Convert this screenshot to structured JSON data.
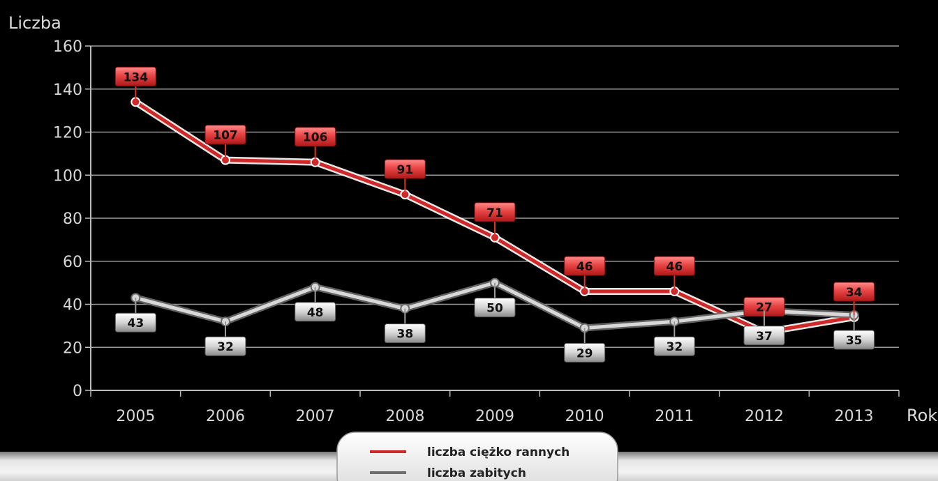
{
  "chart_data": {
    "type": "line",
    "x": [
      "2005",
      "2006",
      "2007",
      "2008",
      "2009",
      "2010",
      "2011",
      "2012",
      "2013"
    ],
    "series": [
      {
        "name": "liczba ciężko rannych",
        "values": [
          134,
          107,
          106,
          91,
          71,
          46,
          46,
          27,
          34
        ],
        "color": "#d02828"
      },
      {
        "name": "liczba zabitych",
        "values": [
          43,
          32,
          48,
          38,
          50,
          29,
          32,
          37,
          35
        ],
        "color": "#d8d8d8"
      }
    ],
    "xlabel": "Rok",
    "ylabel": "Liczba",
    "ylim": [
      0,
      160
    ],
    "yticks": [
      0,
      20,
      40,
      60,
      80,
      100,
      120,
      140,
      160
    ],
    "grid": true,
    "legend": "bottom-center"
  }
}
